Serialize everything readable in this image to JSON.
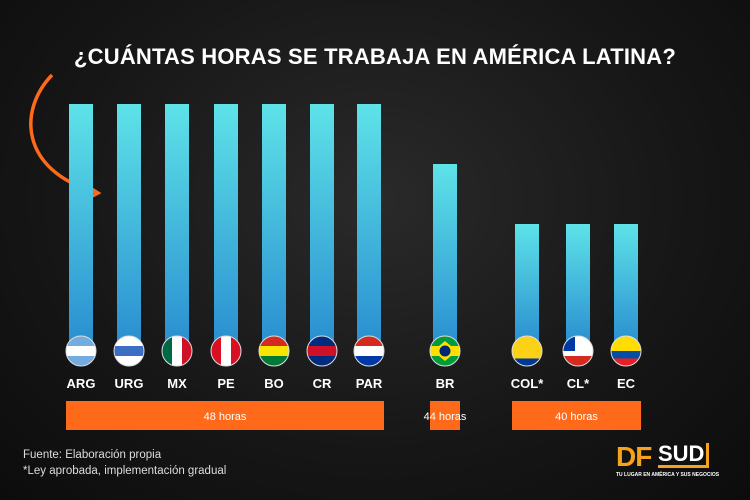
{
  "chart_data": {
    "type": "bar",
    "title": "¿CUÁNTAS HORAS SE TRABAJA EN AMÉRICA LATINA?",
    "categories": [
      "ARG",
      "URG",
      "MX",
      "PE",
      "BO",
      "CR",
      "PAR",
      "BR",
      "COL*",
      "CL*",
      "EC"
    ],
    "values": [
      48,
      48,
      48,
      48,
      48,
      48,
      48,
      44,
      40,
      40,
      40
    ],
    "groups": [
      {
        "label": "48 horas",
        "value": 48,
        "members": [
          "ARG",
          "URG",
          "MX",
          "PE",
          "BO",
          "CR",
          "PAR"
        ]
      },
      {
        "label": "44 horas",
        "value": 44,
        "members": [
          "BR"
        ]
      },
      {
        "label": "40 horas",
        "value": 40,
        "members": [
          "COL*",
          "CL*",
          "EC"
        ]
      }
    ],
    "bar_gradient": [
      "#5ee3e8",
      "#2a8fd0"
    ],
    "group_color": "#ff6a1a",
    "arrow_color": "#ff6a1a",
    "grid": false,
    "legend": "none"
  },
  "footer": {
    "source": "Fuente: Elaboración propia",
    "note": "*Ley aprobada, implementación gradual"
  },
  "logo": {
    "brand_a": "DF",
    "brand_b": "SUD",
    "tagline": "TU LUGAR EN AMÉRICA Y SUS NEGOCIOS"
  }
}
